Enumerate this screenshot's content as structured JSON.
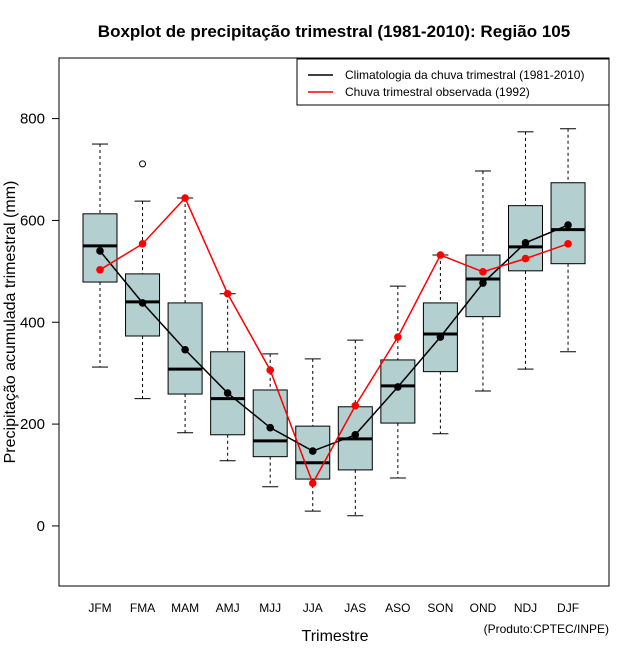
{
  "chart_data": {
    "type": "boxplot",
    "title": "Boxplot de precipitação trimestral (1981-2010): Região 105",
    "xlabel": "Trimestre",
    "ylabel": "Precipitação acumulada trimestral (mm)",
    "ylim": [
      -118,
      919
    ],
    "yticks": [
      "0",
      "200",
      "400",
      "600",
      "800"
    ],
    "ytick_values": [
      0,
      200,
      400,
      600,
      800
    ],
    "categories": [
      "JFM",
      "FMA",
      "MAM",
      "AMJ",
      "MJJ",
      "JJA",
      "JAS",
      "ASO",
      "SON",
      "OND",
      "NDJ",
      "DJF"
    ],
    "boxes": [
      {
        "min": 312,
        "q1": 479,
        "median": 550,
        "q3": 613,
        "max": 750,
        "outliers": []
      },
      {
        "min": 250,
        "q1": 373,
        "median": 440,
        "q3": 495,
        "max": 638,
        "outliers": [
          711
        ]
      },
      {
        "min": 183,
        "q1": 259,
        "median": 308,
        "q3": 438,
        "max": 644,
        "outliers": []
      },
      {
        "min": 128,
        "q1": 179,
        "median": 250,
        "q3": 342,
        "max": 456,
        "outliers": []
      },
      {
        "min": 77,
        "q1": 136,
        "median": 167,
        "q3": 267,
        "max": 338,
        "outliers": []
      },
      {
        "min": 29,
        "q1": 92,
        "median": 124,
        "q3": 196,
        "max": 328,
        "outliers": []
      },
      {
        "min": 20,
        "q1": 110,
        "median": 171,
        "q3": 234,
        "max": 365,
        "outliers": []
      },
      {
        "min": 94,
        "q1": 202,
        "median": 275,
        "q3": 326,
        "max": 471,
        "outliers": []
      },
      {
        "min": 181,
        "q1": 303,
        "median": 377,
        "q3": 438,
        "max": 532,
        "outliers": []
      },
      {
        "min": 265,
        "q1": 411,
        "median": 485,
        "q3": 532,
        "max": 697,
        "outliers": []
      },
      {
        "min": 308,
        "q1": 501,
        "median": 548,
        "q3": 629,
        "max": 774,
        "outliers": []
      },
      {
        "min": 342,
        "q1": 515,
        "median": 582,
        "q3": 674,
        "max": 780,
        "outliers": []
      }
    ],
    "series": [
      {
        "name": "Climatologia da chuva trimestral (1981-2010)",
        "color": "#000000",
        "values": [
          540,
          438,
          346,
          261,
          193,
          147,
          179,
          273,
          371,
          477,
          556,
          591
        ]
      },
      {
        "name": "Chuva trimestral observada (1992)",
        "color": "#ff0000",
        "values": [
          503,
          554,
          644,
          456,
          306,
          84,
          236,
          371,
          532,
          499,
          525,
          554
        ]
      }
    ],
    "legend_position": "top-right",
    "box_color": "#b4cfcf",
    "grid": false
  },
  "footer": "(Produto:CPTEC/INPE)"
}
